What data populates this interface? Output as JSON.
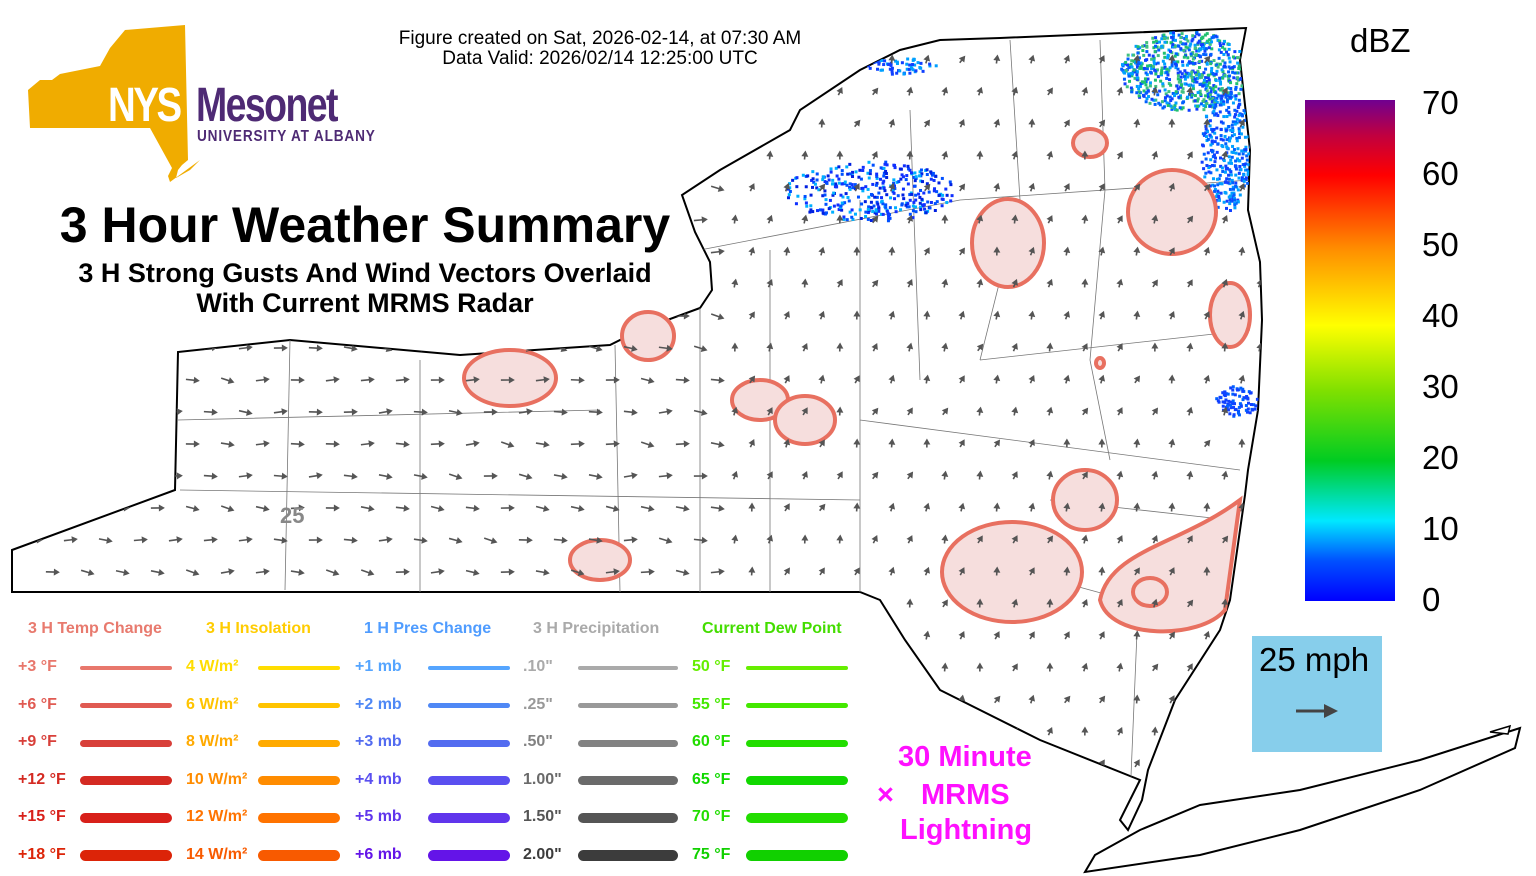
{
  "header": {
    "created": "Figure created on Sat, 2026-02-14, at 07:30 AM",
    "valid": "Data Valid: 2026/02/14 12:25:00 UTC"
  },
  "logo": {
    "nys": "NYS",
    "mesonet": "Mesonet",
    "university": "UNIVERSITY AT ALBANY"
  },
  "title": "3 Hour Weather Summary",
  "subtitle_line1": "3 H Strong Gusts And Wind Vectors Overlaid",
  "subtitle_line2": "With Current MRMS Radar",
  "map": {
    "station_label": "25"
  },
  "colorbar": {
    "unit": "dBZ",
    "ticks": [
      "70",
      "60",
      "50",
      "40",
      "30",
      "20",
      "10",
      "0"
    ],
    "range": [
      0,
      70
    ]
  },
  "wind_key": {
    "label": "25 mph",
    "color": "#87ceeb"
  },
  "lightning": {
    "line1": "30 Minute",
    "symbol": "×",
    "line2": "MRMS",
    "line3": "Lightning",
    "color": "#ff10ff"
  },
  "legend": [
    {
      "title": "3 H Temp Change",
      "title_color": "#e87a6e",
      "items": [
        {
          "label": "+3 °F",
          "color": "#e8776c"
        },
        {
          "label": "+6 °F",
          "color": "#e05a52"
        },
        {
          "label": "+9 °F",
          "color": "#d8403a"
        },
        {
          "label": "+12 °F",
          "color": "#d42a22"
        },
        {
          "label": "+15 °F",
          "color": "#d8201a"
        },
        {
          "label": "+18 °F",
          "color": "#dc2408"
        }
      ]
    },
    {
      "title": "3 H Insolation",
      "title_color": "#ffcc00",
      "items": [
        {
          "label": "4 W/m²",
          "color": "#ffdd00"
        },
        {
          "label": "6 W/m²",
          "color": "#ffc400"
        },
        {
          "label": "8 W/m²",
          "color": "#ffaa00"
        },
        {
          "label": "10 W/m²",
          "color": "#ff8c00"
        },
        {
          "label": "12 W/m²",
          "color": "#ff7300"
        },
        {
          "label": "14 W/m²",
          "color": "#f85a00"
        }
      ]
    },
    {
      "title": "1 H Pres Change",
      "title_color": "#4f9cff",
      "items": [
        {
          "label": "+1 mb",
          "color": "#55a5ff"
        },
        {
          "label": "+2 mb",
          "color": "#4f88f5"
        },
        {
          "label": "+3 mb",
          "color": "#536cf0"
        },
        {
          "label": "+4 mb",
          "color": "#5a4ff0"
        },
        {
          "label": "+5 mb",
          "color": "#6035ec"
        },
        {
          "label": "+6 mb",
          "color": "#6414e8"
        }
      ]
    },
    {
      "title": "3 H Precipitation",
      "title_color": "#aaaaaa",
      "items": [
        {
          "label": ".10\"",
          "color": "#aaaaaa"
        },
        {
          "label": ".25\"",
          "color": "#999999"
        },
        {
          "label": ".50\"",
          "color": "#828282"
        },
        {
          "label": "1.00\"",
          "color": "#6a6a6a"
        },
        {
          "label": "1.50\"",
          "color": "#555555"
        },
        {
          "label": "2.00\"",
          "color": "#3c3c3c"
        }
      ]
    },
    {
      "title": "Current Dew Point",
      "title_color": "#44dd00",
      "items": [
        {
          "label": "50 °F",
          "color": "#66ee00"
        },
        {
          "label": "55 °F",
          "color": "#44e800"
        },
        {
          "label": "60 °F",
          "color": "#22dd00"
        },
        {
          "label": "65 °F",
          "color": "#11d800"
        },
        {
          "label": "70 °F",
          "color": "#22dd00"
        },
        {
          "label": "75 °F",
          "color": "#11d000"
        }
      ]
    }
  ]
}
